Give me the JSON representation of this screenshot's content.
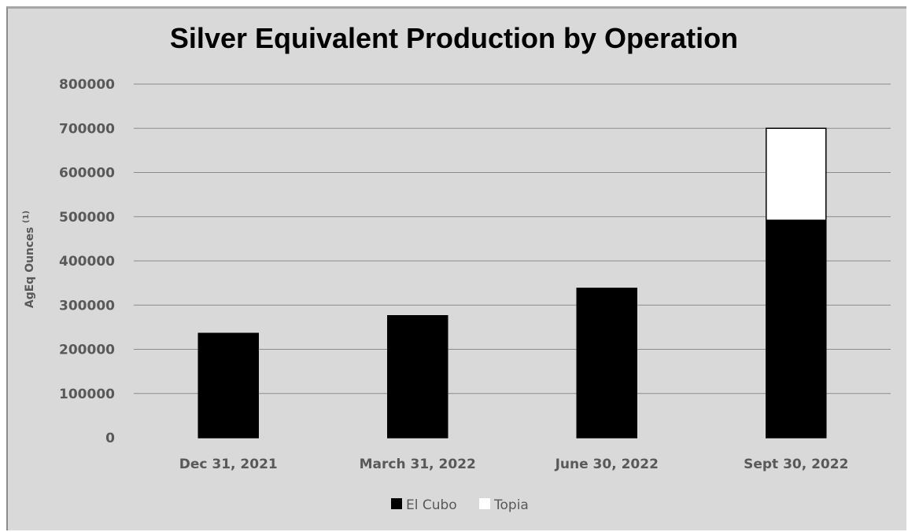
{
  "chart_data": {
    "type": "bar",
    "stacked": true,
    "title": "Silver Equivalent Production by Operation",
    "ylabel": "AgEq Ounces",
    "ylabel_superscript": "(1)",
    "xlabel": "",
    "categories": [
      "Dec 31, 2021",
      "March 31, 2022",
      "June 30, 2022",
      "Sept 30, 2022"
    ],
    "series": [
      {
        "name": "El Cubo",
        "values": [
          236000,
          276000,
          338000,
          492000
        ],
        "color": "#000000"
      },
      {
        "name": "Topia",
        "values": [
          0,
          0,
          0,
          208000
        ],
        "color": "#ffffff"
      }
    ],
    "ylim": [
      0,
      800000
    ],
    "yticks": [
      "0",
      "100000",
      "200000",
      "300000",
      "400000",
      "500000",
      "600000",
      "700000",
      "800000"
    ],
    "grid": true,
    "legend_position": "bottom",
    "background": "#d9d9d9",
    "gridline_color": "#8c8c8c"
  }
}
